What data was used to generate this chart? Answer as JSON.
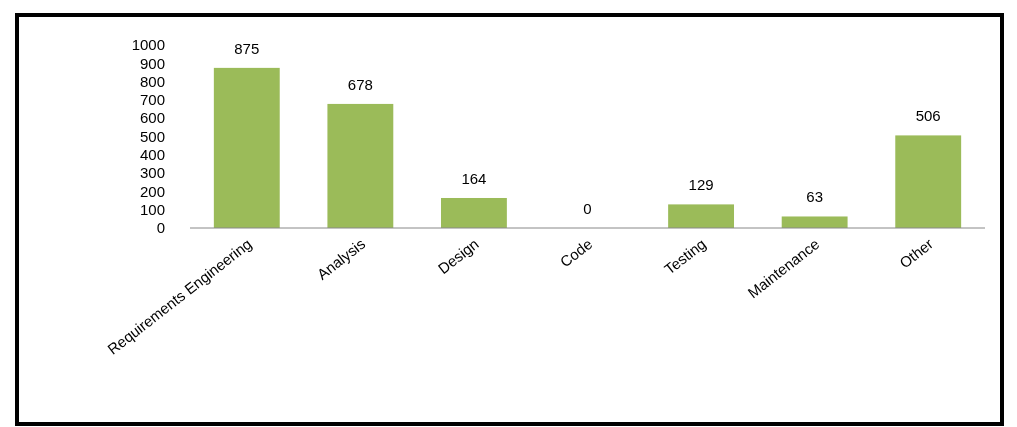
{
  "chart_data": {
    "type": "bar",
    "categories": [
      "Requirements Engineering",
      "Analysis",
      "Design",
      "Code",
      "Testing",
      "Maintenance",
      "Other"
    ],
    "values": [
      875,
      678,
      164,
      0,
      129,
      63,
      506
    ],
    "color": "#9bbb59",
    "ylim": [
      0,
      1000
    ],
    "yticks": [
      0,
      100,
      200,
      300,
      400,
      500,
      600,
      700,
      800,
      900,
      1000
    ],
    "data_labels": true
  }
}
